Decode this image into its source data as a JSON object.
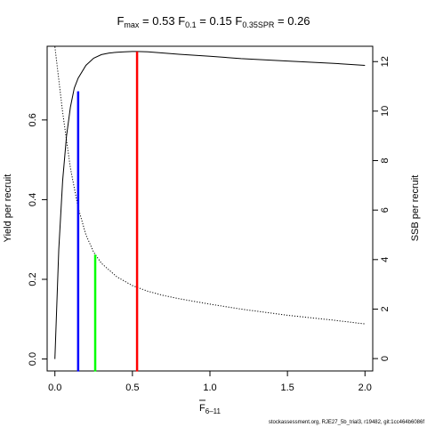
{
  "chart_data": {
    "type": "line",
    "title": {
      "fmax": {
        "base": "F",
        "sub": "max",
        "value": "0.53"
      },
      "f01": {
        "base": "F",
        "sub": "0.1",
        "value": "0.15"
      },
      "fspr": {
        "base": "F",
        "sub": "0.35SPR",
        "value": "0.26"
      }
    },
    "xlabel": {
      "base": "F",
      "sub": "6–11"
    },
    "ylabel_left": "Yield per recruit",
    "ylabel_right": "SSB per recruit",
    "xlim": [
      -0.05,
      2.05
    ],
    "ylim_left": [
      -0.03,
      0.785
    ],
    "ylim_right": [
      -0.5,
      12.62
    ],
    "x_ticks": [
      0.0,
      0.5,
      1.0,
      1.5,
      2.0
    ],
    "x_tick_labels": [
      "0.0",
      "0.5",
      "1.0",
      "1.5",
      "2.0"
    ],
    "y_left_ticks": [
      0.0,
      0.2,
      0.4,
      0.6
    ],
    "y_left_tick_labels": [
      "0.0",
      "0.2",
      "0.4",
      "0.6"
    ],
    "y_right_ticks": [
      0,
      2,
      4,
      6,
      8,
      10,
      12
    ],
    "y_right_tick_labels": [
      "0",
      "2",
      "4",
      "6",
      "8",
      "10",
      "12"
    ],
    "series": [
      {
        "axis": "left",
        "style": "solid",
        "color": "#000000",
        "x": [
          0.0,
          0.025,
          0.05,
          0.075,
          0.1,
          0.125,
          0.15,
          0.2,
          0.25,
          0.3,
          0.35,
          0.4,
          0.45,
          0.5,
          0.53,
          0.6,
          0.7,
          0.8,
          1.0,
          1.2,
          1.5,
          1.8,
          2.0
        ],
        "y": [
          0.0,
          0.275,
          0.448,
          0.56,
          0.632,
          0.68,
          0.705,
          0.737,
          0.755,
          0.764,
          0.768,
          0.77,
          0.771,
          0.772,
          0.772,
          0.771,
          0.768,
          0.765,
          0.76,
          0.754,
          0.748,
          0.742,
          0.737
        ]
      },
      {
        "axis": "right",
        "style": "dotted",
        "color": "#000000",
        "x": [
          0.0,
          0.05,
          0.1,
          0.15,
          0.2,
          0.25,
          0.3,
          0.4,
          0.5,
          0.6,
          0.7,
          0.8,
          1.0,
          1.2,
          1.5,
          1.8,
          2.0
        ],
        "y": [
          12.6,
          9.95,
          7.7,
          6.1,
          5.0,
          4.3,
          3.85,
          3.3,
          2.95,
          2.72,
          2.55,
          2.42,
          2.2,
          2.0,
          1.75,
          1.55,
          1.4
        ]
      }
    ],
    "reference_lines": [
      {
        "x": 0.15,
        "ymax_left": 0.672,
        "color": "#0000ff"
      },
      {
        "x": 0.26,
        "ymax_left": 0.262,
        "color": "#00ff00"
      },
      {
        "x": 0.53,
        "ymax_left": 0.772,
        "color": "#ff0000"
      }
    ],
    "footer": "stockassessment.org, RJE27_5b_trial3, r19482, git:1cc464b6086f"
  }
}
